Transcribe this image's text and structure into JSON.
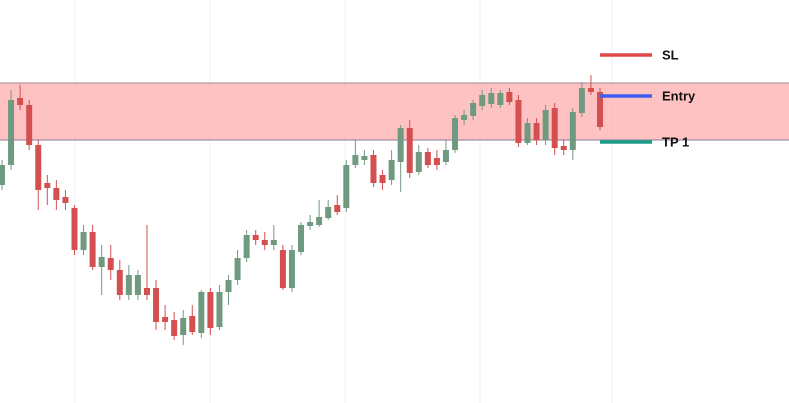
{
  "chart_data": {
    "type": "candlestick",
    "ylim": [
      0,
      403
    ],
    "colors": {
      "up": "#6f9a80",
      "down": "#d44f4f",
      "zone": "#ff9a9a"
    },
    "zone": {
      "low": 263,
      "high": 320
    },
    "levels": [
      {
        "label": "SL",
        "value": 348,
        "color": "#e04848"
      },
      {
        "label": "Entry",
        "value": 307,
        "color": "#3f5ef0"
      },
      {
        "label": "TP 1",
        "value": 261,
        "color": "#1aa08a"
      }
    ],
    "open": [
      218,
      238,
      305,
      298,
      258,
      220,
      215,
      206,
      195,
      153,
      171,
      136,
      145,
      133,
      108,
      108,
      115,
      115,
      86,
      83,
      68,
      87,
      70,
      111,
      76,
      111,
      123,
      145,
      168,
      163,
      158,
      153,
      115,
      151,
      177,
      178,
      185,
      198,
      195,
      238,
      243,
      248,
      228,
      223,
      241,
      275,
      231,
      251,
      245,
      241,
      253,
      283,
      287,
      297,
      299,
      298,
      311,
      303,
      260,
      280,
      263,
      295,
      257,
      253,
      290,
      315,
      311
    ],
    "high": [
      243,
      313,
      318,
      303,
      263,
      228,
      223,
      213,
      198,
      178,
      178,
      158,
      158,
      143,
      138,
      133,
      178,
      123,
      98,
      91,
      93,
      98,
      113,
      115,
      118,
      128,
      153,
      173,
      173,
      171,
      178,
      158,
      158,
      181,
      188,
      203,
      203,
      208,
      243,
      263,
      253,
      253,
      233,
      253,
      278,
      283,
      258,
      255,
      253,
      263,
      288,
      293,
      303,
      313,
      315,
      313,
      315,
      308,
      285,
      285,
      298,
      300,
      263,
      295,
      321,
      328,
      315
    ],
    "low": [
      213,
      233,
      293,
      253,
      193,
      198,
      193,
      193,
      148,
      148,
      133,
      108,
      123,
      103,
      103,
      103,
      103,
      73,
      73,
      63,
      58,
      68,
      65,
      68,
      73,
      98,
      118,
      141,
      158,
      153,
      153,
      113,
      111,
      148,
      173,
      176,
      183,
      188,
      191,
      235,
      238,
      216,
      213,
      218,
      211,
      225,
      228,
      235,
      233,
      238,
      250,
      278,
      283,
      293,
      295,
      295,
      298,
      256,
      258,
      258,
      258,
      248,
      248,
      243,
      286,
      308,
      273
    ],
    "close": [
      238,
      303,
      298,
      258,
      213,
      215,
      203,
      200,
      153,
      171,
      136,
      146,
      133,
      108,
      128,
      128,
      108,
      81,
      81,
      67,
      85,
      71,
      111,
      75,
      111,
      123,
      145,
      168,
      163,
      158,
      163,
      115,
      153,
      178,
      181,
      186,
      196,
      191,
      238,
      248,
      247,
      220,
      220,
      243,
      275,
      230,
      251,
      238,
      238,
      253,
      285,
      288,
      300,
      308,
      310,
      310,
      301,
      260,
      280,
      263,
      293,
      255,
      253,
      291,
      315,
      311,
      276
    ]
  }
}
